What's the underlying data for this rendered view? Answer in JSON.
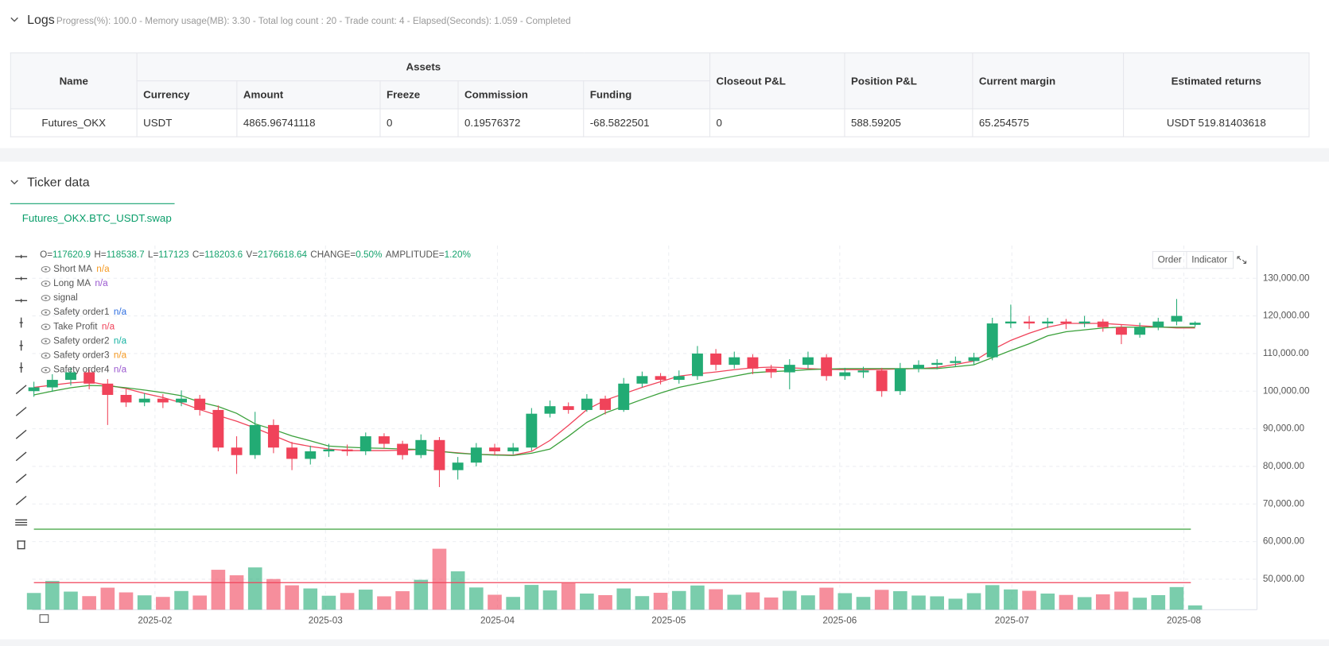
{
  "logs": {
    "title": "Logs",
    "summary": "Progress(%): 100.0 - Memory usage(MB): 3.30 - Total log count : 20 - Trade count: 4 - Elapsed(Seconds): 1.059 - Completed"
  },
  "table": {
    "group": "Assets",
    "columns": [
      "Name",
      "Currency",
      "Amount",
      "Freeze",
      "Commission",
      "Funding",
      "Closeout P&L",
      "Position P&L",
      "Current margin",
      "Estimated returns"
    ],
    "rows": [
      [
        "Futures_OKX",
        "USDT",
        "4865.96741118",
        "0",
        "0.19576372",
        "-68.5822501",
        "0",
        "588.59205",
        "65.254575",
        "USDT 519.81403618"
      ]
    ]
  },
  "ticker": {
    "title": "Ticker data",
    "tab": "Futures_OKX.BTC_USDT.swap"
  },
  "chart_data": {
    "type": "candlestick",
    "info": [
      {
        "label": "O=",
        "value": "117620.9"
      },
      {
        "label": "H=",
        "value": "118538.7"
      },
      {
        "label": "L=",
        "value": "117123"
      },
      {
        "label": "C=",
        "value": "118203.6"
      },
      {
        "label": "V=",
        "value": "2176618.64"
      },
      {
        "label": "CHANGE=",
        "value": "0.50%"
      },
      {
        "label": "AMPLITUDE=",
        "value": "1.20%"
      }
    ],
    "legend": [
      {
        "name": "Short MA",
        "value": "n/a",
        "color": "#f59a23"
      },
      {
        "name": "Long MA",
        "value": "n/a",
        "color": "#9b59d0"
      },
      {
        "name": "signal"
      },
      {
        "name": "Safety order1",
        "value": "n/a",
        "color": "#2f6fe0"
      },
      {
        "name": "Take Profit",
        "value": "n/a",
        "color": "#f0435a"
      },
      {
        "name": "Safety order2",
        "value": "n/a",
        "color": "#17b3a3"
      },
      {
        "name": "Safety order3",
        "value": "n/a",
        "color": "#f59a23"
      },
      {
        "name": "Safety order4",
        "value": "n/a",
        "color": "#9b59d0"
      }
    ],
    "buttons": [
      "Order",
      "Indicator"
    ],
    "categories": [
      null,
      null,
      null,
      null,
      null,
      null,
      null,
      null,
      null,
      null,
      null,
      null,
      null,
      null,
      null,
      null,
      null,
      null,
      null,
      null,
      null,
      null,
      null,
      null,
      null,
      null,
      null,
      null,
      null,
      null,
      null,
      null,
      null,
      null,
      null,
      null,
      null,
      null,
      null,
      null,
      null,
      null,
      null,
      null,
      null,
      null,
      null,
      null,
      null,
      null,
      null,
      null,
      null,
      null,
      null,
      null,
      null,
      null,
      null,
      null,
      null,
      null,
      null,
      null
    ],
    "open": [
      100000,
      101000,
      103000,
      105000,
      102000,
      99000,
      97000,
      98000,
      97000,
      98000,
      95000,
      85000,
      83000,
      91000,
      85000,
      82000,
      84000,
      84500,
      84000,
      88000,
      86000,
      83000,
      87000,
      79000,
      81000,
      85000,
      84000,
      85000,
      94000,
      96000,
      95000,
      98000,
      95000,
      102000,
      104000,
      103000,
      104000,
      110000,
      107000,
      109000,
      106000,
      105000,
      107000,
      109000,
      104000,
      105000,
      105500,
      100000,
      106000,
      107000,
      107500,
      108000,
      109000,
      118000,
      118500,
      118000,
      118500,
      118000,
      118500,
      117000,
      115000,
      117000,
      118500,
      117620.9
    ],
    "high": [
      102500,
      104500,
      106200,
      105800,
      103200,
      100500,
      99500,
      99200,
      100200,
      99000,
      96200,
      88000,
      94500,
      92500,
      86500,
      85500,
      86000,
      85800,
      89000,
      88800,
      86800,
      88500,
      87800,
      82500,
      86200,
      86000,
      86200,
      95500,
      97500,
      97000,
      99200,
      98800,
      103500,
      105200,
      104800,
      105500,
      112000,
      111200,
      110500,
      109800,
      107000,
      108500,
      110500,
      109800,
      106200,
      106500,
      106200,
      107500,
      108200,
      108500,
      109200,
      110200,
      119500,
      123000,
      120000,
      119500,
      119200,
      120000,
      119200,
      117800,
      118200,
      119500,
      124500,
      118538.7
    ],
    "low": [
      98500,
      99800,
      101500,
      100500,
      91000,
      95800,
      96000,
      95500,
      96000,
      93500,
      84000,
      78000,
      82000,
      83500,
      79000,
      80500,
      82500,
      82800,
      83000,
      84800,
      81800,
      82200,
      74500,
      76500,
      80000,
      83000,
      83200,
      84200,
      93000,
      94000,
      94500,
      93800,
      94500,
      101000,
      101800,
      102000,
      103000,
      105500,
      106000,
      104500,
      103500,
      100500,
      106000,
      102800,
      103000,
      103500,
      98500,
      99000,
      105000,
      105800,
      106500,
      107000,
      108200,
      116800,
      116500,
      116800,
      116500,
      117000,
      115800,
      112500,
      114200,
      116200,
      117500,
      117123
    ],
    "close": [
      101000,
      103000,
      105000,
      102000,
      99000,
      97000,
      98000,
      97000,
      98000,
      95000,
      85000,
      83000,
      91000,
      85000,
      82000,
      84000,
      84500,
      84000,
      88000,
      86000,
      83000,
      87000,
      79000,
      81000,
      85000,
      84000,
      85000,
      94000,
      96000,
      95000,
      98000,
      95000,
      102000,
      104000,
      103000,
      104000,
      110000,
      107000,
      109000,
      106000,
      105000,
      107000,
      109000,
      104000,
      105000,
      105500,
      100000,
      106000,
      107000,
      107500,
      108000,
      109000,
      118000,
      118500,
      118000,
      118500,
      118000,
      118500,
      117000,
      115000,
      117000,
      118500,
      120000,
      118203.6
    ],
    "volume": [
      8500000,
      14600000,
      9200000,
      6900000,
      11200000,
      8800000,
      7300000,
      6500000,
      9500000,
      7200000,
      20300000,
      17500000,
      21500000,
      15600000,
      12400000,
      10800000,
      7100000,
      8500000,
      10200000,
      6800000,
      9400000,
      15200000,
      31000000,
      19500000,
      11300000,
      7600000,
      6500000,
      12600000,
      9800000,
      13500000,
      8200000,
      7400000,
      10800000,
      6900000,
      8600000,
      9500000,
      12300000,
      10400000,
      7600000,
      8800000,
      6200000,
      9600000,
      7300000,
      11200000,
      8400000,
      6500000,
      10100000,
      9400000,
      7200000,
      6800000,
      5600000,
      8400000,
      12500000,
      10300000,
      9600000,
      8200000,
      7500000,
      6400000,
      7800000,
      9200000,
      6100000,
      7400000,
      11500000,
      2176618.64
    ],
    "series": [
      {
        "color": "#f0435a",
        "values": [
          101000,
          101600,
          102200,
          102500,
          101600,
          100700,
          99400,
          98300,
          96900,
          95100,
          93500,
          92000,
          90200,
          88200,
          86200,
          85300,
          84600,
          84200,
          84200,
          84200,
          84300,
          84500,
          84000,
          83600,
          83200,
          83100,
          83000,
          84000,
          86900,
          90900,
          95100,
          97600,
          99300,
          101000,
          102500,
          104000,
          104600,
          105100,
          105700,
          106200,
          106400,
          106200,
          106000,
          105800,
          105700,
          105700,
          105800,
          105900,
          106000,
          106300,
          107100,
          108000,
          111000,
          113500,
          115400,
          117000,
          118000,
          118000,
          118000,
          117700,
          117400,
          117100,
          116800,
          116800
        ]
      },
      {
        "color": "#3aa03a",
        "values": [
          99000,
          100000,
          100900,
          101500,
          101400,
          100900,
          100300,
          99600,
          98800,
          97100,
          95900,
          94100,
          91300,
          89800,
          88100,
          86800,
          85400,
          85100,
          84900,
          84800,
          84600,
          84500,
          84000,
          83500,
          83200,
          83000,
          82900,
          83500,
          84600,
          88000,
          91700,
          94200,
          96000,
          97800,
          99500,
          101000,
          102000,
          103000,
          104000,
          104900,
          105200,
          105400,
          105700,
          105900,
          106000,
          106000,
          106000,
          106000,
          106000,
          106000,
          106500,
          107000,
          108900,
          110800,
          112600,
          114700,
          115800,
          116300,
          116800,
          117000,
          117000,
          117000,
          117000,
          117000
        ]
      }
    ],
    "hlines": [
      {
        "value": 63300,
        "color": "#3aa03a"
      },
      {
        "value": 49100,
        "color": "#f0435a"
      }
    ],
    "up_color": "#22ab74",
    "down_color": "#f0435a",
    "ylim": [
      41900,
      138700
    ],
    "yticks": [
      {
        "value": 50000,
        "label": "50,000.00"
      },
      {
        "value": 60000,
        "label": "60,000.00"
      },
      {
        "value": 70000,
        "label": "70,000.00"
      },
      {
        "value": 80000,
        "label": "80,000.00"
      },
      {
        "value": 90000,
        "label": "90,000.00"
      },
      {
        "value": 100000,
        "label": "100,000.00"
      },
      {
        "value": 110000,
        "label": "110,000.00"
      },
      {
        "value": 120000,
        "label": "120,000.00"
      },
      {
        "value": 130000,
        "label": "130,000.00"
      }
    ],
    "xticks": [
      {
        "value": 6.57,
        "label": "2025-02"
      },
      {
        "value": 15.82,
        "label": "2025-03"
      },
      {
        "value": 25.15,
        "label": "2025-04"
      },
      {
        "value": 34.44,
        "label": "2025-05"
      },
      {
        "value": 43.72,
        "label": "2025-06"
      },
      {
        "value": 53.06,
        "label": "2025-07"
      },
      {
        "value": 62.39,
        "label": "2025-08"
      }
    ],
    "grid": true
  }
}
